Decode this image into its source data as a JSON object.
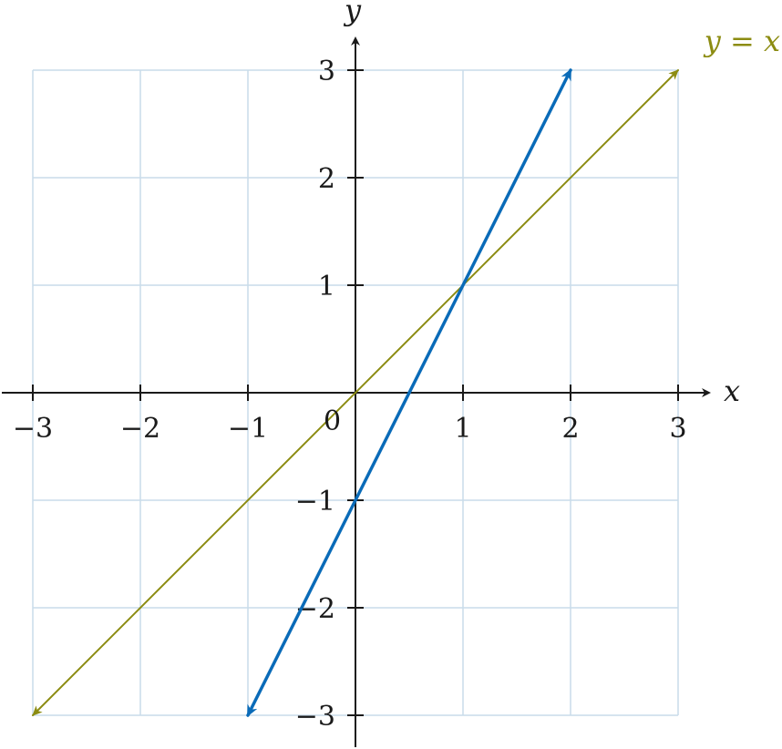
{
  "chart_data": {
    "type": "line",
    "xlabel": "x",
    "ylabel": "y",
    "xlim": [
      -3,
      3
    ],
    "ylim": [
      -3,
      3
    ],
    "xticks": [
      -3,
      -2,
      -1,
      1,
      2,
      3
    ],
    "xtick_labels": [
      "−3",
      "−2",
      "−1",
      "1",
      "2",
      "3"
    ],
    "yticks": [
      -3,
      -2,
      -1,
      1,
      2,
      3
    ],
    "ytick_labels": [
      "−3",
      "−2",
      "−1",
      "1",
      "2",
      "3"
    ],
    "origin_label": "0",
    "grid": true,
    "colors": {
      "grid": "#c9dcea",
      "axis": "#1a1a1a"
    },
    "series": [
      {
        "label": "",
        "color": "#0a6bb8",
        "x": [
          -1,
          2
        ],
        "y": [
          -3,
          3
        ],
        "arrows": "both"
      },
      {
        "label": "y = x",
        "color": "#8c8c12",
        "x": [
          -3,
          3
        ],
        "y": [
          -3,
          3
        ],
        "arrows": "both"
      }
    ]
  }
}
